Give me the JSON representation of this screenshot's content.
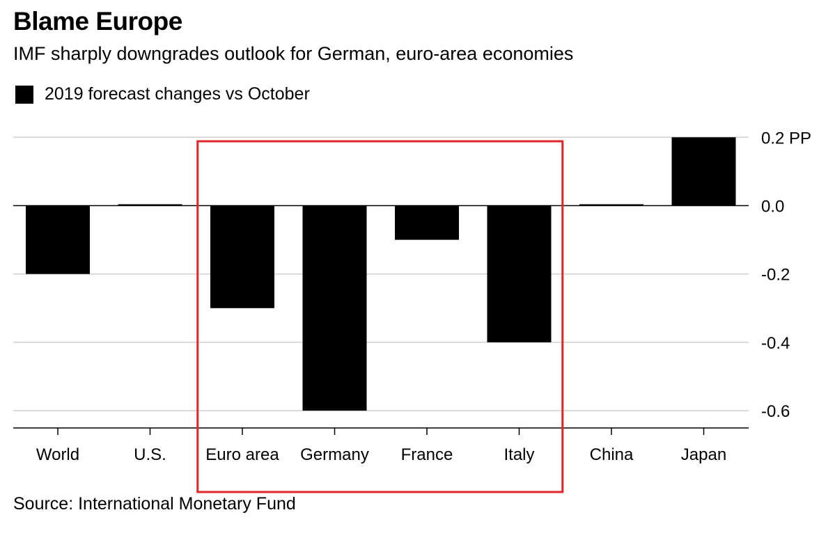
{
  "title": "Blame Europe",
  "subtitle": "IMF sharply downgrades outlook for German, euro-area economies",
  "legend": {
    "label": "2019 forecast changes vs October"
  },
  "source": "Source: International Monetary Fund",
  "colors": {
    "bar": "#000000",
    "grid": "#d9d9d9",
    "zero_line": "#000000",
    "highlight_box": "#e0252b"
  },
  "chart_data": {
    "type": "bar",
    "categories": [
      "World",
      "U.S.",
      "Euro area",
      "Germany",
      "France",
      "Italy",
      "China",
      "Japan"
    ],
    "series": [
      {
        "name": "2019 forecast changes vs October",
        "values": [
          -0.2,
          0.0,
          -0.3,
          -0.6,
          -0.1,
          -0.4,
          0.0,
          0.2
        ]
      }
    ],
    "ylim": [
      -0.65,
      0.2
    ],
    "y_ticks": [
      0.2,
      0.0,
      -0.2,
      -0.4,
      -0.6
    ],
    "y_tick_labels": [
      "0.2 PP",
      "0.0",
      "-0.2",
      "-0.4",
      "-0.6"
    ],
    "y_axis_position": "right",
    "grid": true,
    "legend_position": "top-left",
    "highlighted_categories": [
      "Euro area",
      "Germany",
      "France",
      "Italy"
    ]
  }
}
